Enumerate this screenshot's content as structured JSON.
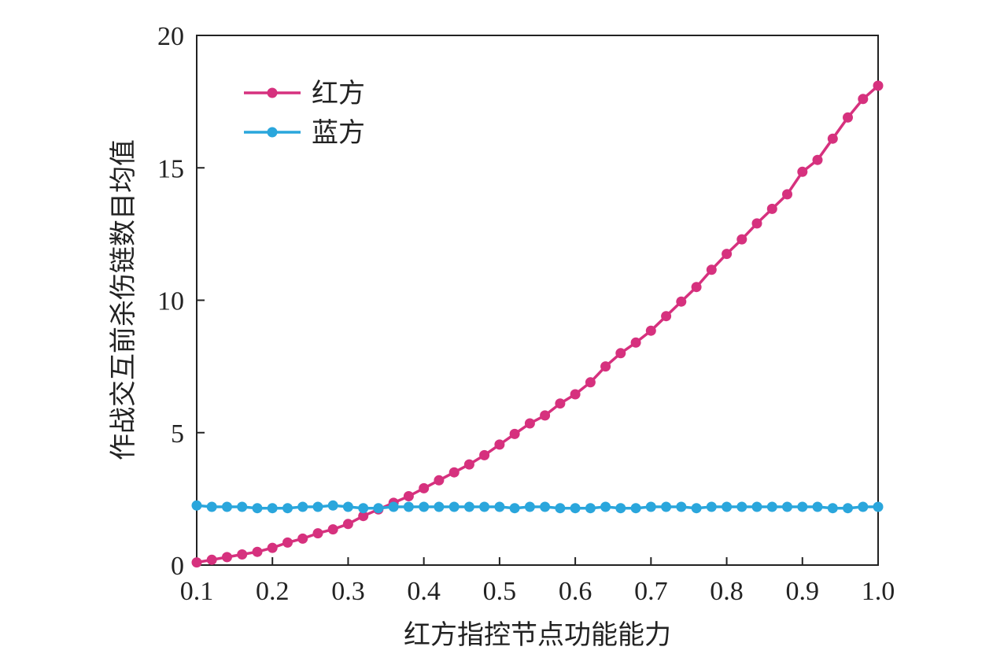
{
  "chart_data": {
    "type": "line",
    "title": "",
    "xlabel": "红方指控节点功能能力",
    "ylabel": "作战交互前杀伤链数目均值",
    "xlim": [
      0.1,
      1.0
    ],
    "ylim": [
      0,
      20
    ],
    "xticks": [
      "0.1",
      "0.2",
      "0.3",
      "0.4",
      "0.5",
      "0.6",
      "0.7",
      "0.8",
      "0.9",
      "1.0"
    ],
    "yticks": [
      "0",
      "5",
      "10",
      "15",
      "20"
    ],
    "grid": false,
    "legend_position": "top-left",
    "x": [
      0.1,
      0.12,
      0.14,
      0.16,
      0.18,
      0.2,
      0.22,
      0.24,
      0.26,
      0.28,
      0.3,
      0.32,
      0.34,
      0.36,
      0.38,
      0.4,
      0.42,
      0.44,
      0.46,
      0.48,
      0.5,
      0.52,
      0.54,
      0.56,
      0.58,
      0.6,
      0.62,
      0.64,
      0.66,
      0.68,
      0.7,
      0.72,
      0.74,
      0.76,
      0.78,
      0.8,
      0.82,
      0.84,
      0.86,
      0.88,
      0.9,
      0.92,
      0.94,
      0.96,
      0.98,
      1.0
    ],
    "series": [
      {
        "name": "红方",
        "color": "#d6317e",
        "values": [
          0.1,
          0.2,
          0.3,
          0.4,
          0.5,
          0.65,
          0.85,
          1.0,
          1.2,
          1.35,
          1.55,
          1.85,
          2.1,
          2.35,
          2.6,
          2.9,
          3.2,
          3.5,
          3.8,
          4.15,
          4.55,
          4.95,
          5.35,
          5.65,
          6.1,
          6.45,
          6.9,
          7.5,
          8.0,
          8.4,
          8.85,
          9.4,
          9.95,
          10.5,
          11.15,
          11.75,
          12.3,
          12.9,
          13.45,
          14.0,
          14.85,
          15.3,
          16.1,
          16.9,
          17.6,
          18.1
        ]
      },
      {
        "name": "蓝方",
        "color": "#2aa6dc",
        "values": [
          2.25,
          2.2,
          2.2,
          2.2,
          2.15,
          2.15,
          2.15,
          2.2,
          2.2,
          2.25,
          2.2,
          2.15,
          2.15,
          2.2,
          2.2,
          2.2,
          2.2,
          2.2,
          2.2,
          2.2,
          2.2,
          2.15,
          2.2,
          2.2,
          2.15,
          2.15,
          2.15,
          2.2,
          2.15,
          2.15,
          2.2,
          2.2,
          2.2,
          2.15,
          2.2,
          2.2,
          2.2,
          2.2,
          2.2,
          2.2,
          2.2,
          2.2,
          2.15,
          2.15,
          2.2,
          2.2
        ]
      }
    ]
  }
}
